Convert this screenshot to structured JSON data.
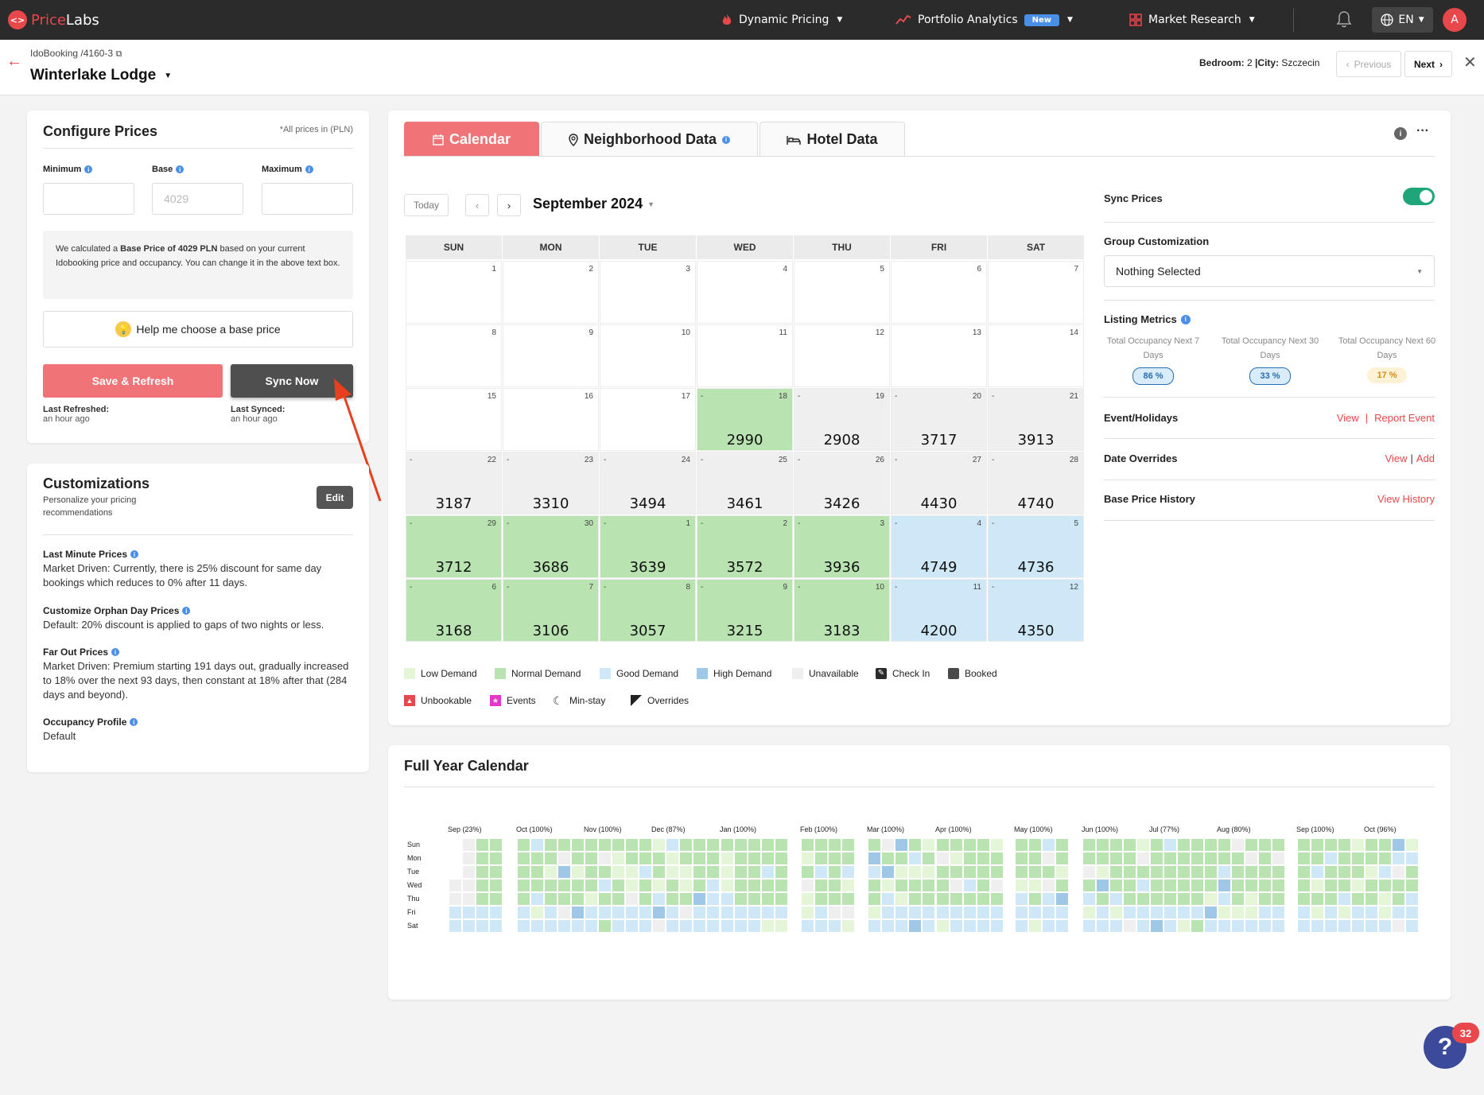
{
  "brand": {
    "price": "Price",
    "labs": "Labs"
  },
  "nav": {
    "dynamic_pricing": "Dynamic Pricing",
    "portfolio_analytics": "Portfolio Analytics",
    "new_badge": "New",
    "market_research": "Market Research",
    "language": "EN",
    "avatar_initial": "A"
  },
  "header": {
    "crumb_pms": "IdoBooking /",
    "crumb_id": "4160-3",
    "listing_name": "Winterlake Lodge",
    "bedroom_label": "Bedroom:",
    "bedroom_value": "2",
    "city_label": "|City:",
    "city_value": "Szczecin",
    "previous": "Previous",
    "next": "Next"
  },
  "configure": {
    "title": "Configure Prices",
    "currency_note": "*All prices in (PLN)",
    "minimum_label": "Minimum",
    "base_label": "Base",
    "maximum_label": "Maximum",
    "minimum_value": "",
    "base_placeholder": "4029",
    "maximum_value": "",
    "note_pre": "We calculated a",
    "note_bold": "Base Price of 4029 PLN",
    "note_post": "based on your current Idobooking price and occupancy. You can change it in the above text box.",
    "help_button": "Help me choose a base price",
    "save_button": "Save & Refresh",
    "sync_button": "Sync Now",
    "last_refreshed_label": "Last Refreshed:",
    "last_refreshed_value": "an hour ago",
    "last_synced_label": "Last Synced:",
    "last_synced_value": "an hour ago"
  },
  "customizations": {
    "title": "Customizations",
    "subtitle": "Personalize your pricing recommendations",
    "edit": "Edit",
    "items": [
      {
        "title": "Last Minute Prices",
        "text": "Market Driven: Currently, there is 25% discount for same day bookings which reduces to 0% after 11 days."
      },
      {
        "title": "Customize Orphan Day Prices",
        "text": "Default: 20% discount is applied to gaps of two nights or less."
      },
      {
        "title": "Far Out Prices",
        "text": "Market Driven: Premium starting 191 days out, gradually increased to 18% over the next 93 days, then constant at 18% after that (284 days and beyond)."
      },
      {
        "title": "Occupancy Profile",
        "text": "Default"
      }
    ]
  },
  "tabs": {
    "calendar": "Calendar",
    "neighborhood": "Neighborhood Data",
    "hotel": "Hotel Data"
  },
  "calendar": {
    "today": "Today",
    "month": "September 2024",
    "weekdays": [
      "SUN",
      "MON",
      "TUE",
      "WED",
      "THU",
      "FRI",
      "SAT"
    ],
    "weeks": [
      [
        {
          "d": "1",
          "p": "",
          "s": "none",
          "dash": ""
        },
        {
          "d": "2",
          "p": "",
          "s": "none",
          "dash": ""
        },
        {
          "d": "3",
          "p": "",
          "s": "none",
          "dash": ""
        },
        {
          "d": "4",
          "p": "",
          "s": "none",
          "dash": ""
        },
        {
          "d": "5",
          "p": "",
          "s": "none",
          "dash": ""
        },
        {
          "d": "6",
          "p": "",
          "s": "none",
          "dash": ""
        },
        {
          "d": "7",
          "p": "",
          "s": "none",
          "dash": ""
        }
      ],
      [
        {
          "d": "8",
          "p": "",
          "s": "none",
          "dash": ""
        },
        {
          "d": "9",
          "p": "",
          "s": "none",
          "dash": ""
        },
        {
          "d": "10",
          "p": "",
          "s": "none",
          "dash": ""
        },
        {
          "d": "11",
          "p": "",
          "s": "none",
          "dash": ""
        },
        {
          "d": "12",
          "p": "",
          "s": "none",
          "dash": ""
        },
        {
          "d": "13",
          "p": "",
          "s": "none",
          "dash": ""
        },
        {
          "d": "14",
          "p": "",
          "s": "none",
          "dash": ""
        }
      ],
      [
        {
          "d": "15",
          "p": "",
          "s": "none",
          "dash": ""
        },
        {
          "d": "16",
          "p": "",
          "s": "none",
          "dash": ""
        },
        {
          "d": "17",
          "p": "",
          "s": "none",
          "dash": ""
        },
        {
          "d": "18",
          "p": "2990",
          "s": "normal",
          "dash": "-"
        },
        {
          "d": "19",
          "p": "2908",
          "s": "unavail",
          "dash": "-"
        },
        {
          "d": "20",
          "p": "3717",
          "s": "unavail",
          "dash": "-"
        },
        {
          "d": "21",
          "p": "3913",
          "s": "unavail",
          "dash": "-"
        }
      ],
      [
        {
          "d": "22",
          "p": "3187",
          "s": "unavail",
          "dash": "-"
        },
        {
          "d": "23",
          "p": "3310",
          "s": "unavail",
          "dash": "-"
        },
        {
          "d": "24",
          "p": "3494",
          "s": "unavail",
          "dash": "-"
        },
        {
          "d": "25",
          "p": "3461",
          "s": "unavail",
          "dash": "-"
        },
        {
          "d": "26",
          "p": "3426",
          "s": "unavail",
          "dash": "-"
        },
        {
          "d": "27",
          "p": "4430",
          "s": "unavail",
          "dash": "-"
        },
        {
          "d": "28",
          "p": "4740",
          "s": "unavail",
          "dash": "-"
        }
      ],
      [
        {
          "d": "29",
          "p": "3712",
          "s": "normal",
          "dash": "-"
        },
        {
          "d": "30",
          "p": "3686",
          "s": "normal",
          "dash": "-"
        },
        {
          "d": "1",
          "p": "3639",
          "s": "normal",
          "dash": "-"
        },
        {
          "d": "2",
          "p": "3572",
          "s": "normal",
          "dash": "-"
        },
        {
          "d": "3",
          "p": "3936",
          "s": "normal",
          "dash": "-"
        },
        {
          "d": "4",
          "p": "4749",
          "s": "good",
          "dash": "-"
        },
        {
          "d": "5",
          "p": "4736",
          "s": "good",
          "dash": "-"
        }
      ],
      [
        {
          "d": "6",
          "p": "3168",
          "s": "normal",
          "dash": "-"
        },
        {
          "d": "7",
          "p": "3106",
          "s": "normal",
          "dash": "-"
        },
        {
          "d": "8",
          "p": "3057",
          "s": "normal",
          "dash": "-"
        },
        {
          "d": "9",
          "p": "3215",
          "s": "normal",
          "dash": "-"
        },
        {
          "d": "10",
          "p": "3183",
          "s": "normal",
          "dash": "-"
        },
        {
          "d": "11",
          "p": "4200",
          "s": "good",
          "dash": "-"
        },
        {
          "d": "12",
          "p": "4350",
          "s": "good",
          "dash": "-"
        }
      ]
    ],
    "legend_row1": [
      {
        "label": "Low Demand",
        "color": "#e4f5d8",
        "icon": "low-demand-swatch"
      },
      {
        "label": "Normal Demand",
        "color": "#b9e4b1",
        "icon": "normal-demand-swatch"
      },
      {
        "label": "Good Demand",
        "color": "#cfe8f7",
        "icon": "good-demand-swatch"
      },
      {
        "label": "High Demand",
        "color": "#9fc8e6",
        "icon": "high-demand-swatch"
      },
      {
        "label": "Unavailable",
        "color": "#efefef",
        "icon": "unavailable-swatch"
      },
      {
        "label": "Check In",
        "color": "#2b2b2b",
        "icon": "check-in-icon"
      },
      {
        "label": "Booked",
        "color": "#4a4a4a",
        "icon": "booked-swatch"
      }
    ],
    "legend_row2": [
      {
        "label": "Unbookable",
        "color": "#e8474b",
        "icon": "unbookable-icon"
      },
      {
        "label": "Events",
        "color": "#e636c8",
        "icon": "events-icon"
      },
      {
        "label": "Min-stay",
        "color": "#333333",
        "icon": "moon-icon"
      },
      {
        "label": "Overrides",
        "color": "#222222",
        "icon": "override-icon"
      }
    ]
  },
  "side": {
    "sync_prices": "Sync Prices",
    "sync_on": true,
    "group_customization": "Group Customization",
    "group_value": "Nothing Selected",
    "listing_metrics": "Listing Metrics",
    "metrics": [
      {
        "label": "Total Occupancy Next 7 Days",
        "value": "86 %",
        "bg": "#d9ecfb",
        "fg": "#2a6db0"
      },
      {
        "label": "Total Occupancy Next 30 Days",
        "value": "33 %",
        "bg": "#d9ecfb",
        "fg": "#2a6db0"
      },
      {
        "label": "Total Occupancy Next 60 Days",
        "value": "17 %",
        "bg": "#fdf2d6",
        "fg": "#d58a12"
      }
    ],
    "events": "Event/Holidays",
    "events_view": "View",
    "events_sep": "|",
    "events_report": "Report Event",
    "overrides": "Date Overrides",
    "overrides_view": "View",
    "overrides_sep": "|",
    "overrides_add": "Add",
    "base_history": "Base Price History",
    "view_history": "View History"
  },
  "year": {
    "title": "Full Year Calendar",
    "days": [
      "Sun",
      "Mon",
      "Tue",
      "Wed",
      "Thu",
      "Fri",
      "Sat"
    ],
    "months": [
      "Sep (23%)",
      "Oct (100%)",
      "Nov (100%)",
      "Dec (87%)",
      "Jan (100%)",
      "Feb (100%)",
      "Mar (100%)",
      "Apr (100%)",
      "May (100%)",
      "Jun (100%)",
      "Jul (77%)",
      "Aug (80%)",
      "Sep (100%)",
      "Oct (96%)"
    ]
  },
  "help": {
    "glyph": "?",
    "count": "32"
  },
  "colors": {
    "brand_red": "#e8474b",
    "sync_green": "#1fa57a",
    "tab_active": "#f07477"
  }
}
